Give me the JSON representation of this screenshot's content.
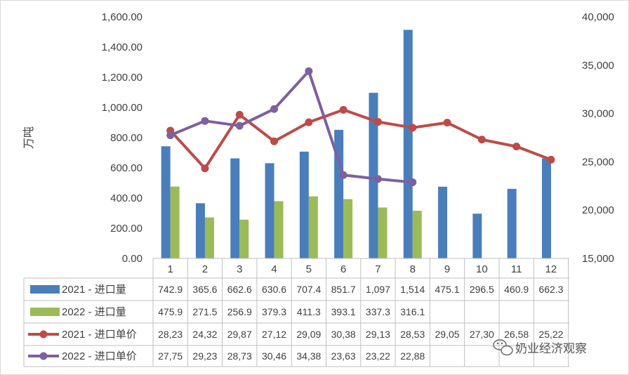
{
  "chart_data": {
    "type": "bar",
    "categories": [
      "1",
      "2",
      "3",
      "4",
      "5",
      "6",
      "7",
      "8",
      "9",
      "10",
      "11",
      "12"
    ],
    "ylabel": "万吨",
    "y_left_ticks": [
      "0.00",
      "200.00",
      "400.00",
      "600.00",
      "800.00",
      "1,000.00",
      "1,200.00",
      "1,400.00",
      "1,600.00"
    ],
    "y_right_ticks": [
      "15,000",
      "20,000",
      "25,000",
      "30,000",
      "35,000",
      "40,000"
    ],
    "ylim_left": [
      0,
      1600
    ],
    "ylim_right": [
      15000,
      40000
    ],
    "grid": false,
    "legend_placement": "data-table",
    "series": [
      {
        "name": "2021 - 进口量",
        "kind": "bar",
        "axis": "left",
        "color": "#4a7ebb",
        "values": [
          742.9,
          365.6,
          662.6,
          630.6,
          707.4,
          851.7,
          1097,
          1514,
          475.1,
          296.5,
          460.9,
          662.3
        ],
        "labels": [
          "742.9",
          "365.6",
          "662.6",
          "630.6",
          "707.4",
          "851.7",
          "1,097",
          "1,514",
          "475.1",
          "296.5",
          "460.9",
          "662.3"
        ]
      },
      {
        "name": "2022 - 进口量",
        "kind": "bar",
        "axis": "left",
        "color": "#9bbb59",
        "values": [
          475.9,
          271.5,
          256.9,
          379.3,
          411.3,
          393.1,
          337.3,
          316.1,
          null,
          null,
          null,
          null
        ],
        "labels": [
          "475.9",
          "271.5",
          "256.9",
          "379.3",
          "411.3",
          "393.1",
          "337.3",
          "316.1",
          "",
          "",
          "",
          ""
        ]
      },
      {
        "name": "2021 - 进口单价",
        "kind": "line",
        "axis": "right",
        "color": "#be4b48",
        "values": [
          28230,
          24320,
          29870,
          27120,
          29090,
          30380,
          29130,
          28530,
          29050,
          27300,
          26580,
          25220
        ],
        "labels": [
          "28,23",
          "24,32",
          "29,87",
          "27,12",
          "29,09",
          "30,38",
          "29,13",
          "28,53",
          "29,05",
          "27,30",
          "26,58",
          "25,22"
        ]
      },
      {
        "name": "2022 - 进口单价",
        "kind": "line",
        "axis": "right",
        "color": "#7d60a0",
        "values": [
          27750,
          29230,
          28730,
          30460,
          34380,
          23630,
          23220,
          22880,
          null,
          null,
          null,
          null
        ],
        "labels": [
          "27,75",
          "29,23",
          "28,73",
          "30,46",
          "34,38",
          "23,63",
          "23,22",
          "22,88",
          "",
          "",
          "",
          ""
        ]
      }
    ]
  },
  "watermark": {
    "icon": "wechat-icon",
    "text": "奶业经济观察"
  }
}
